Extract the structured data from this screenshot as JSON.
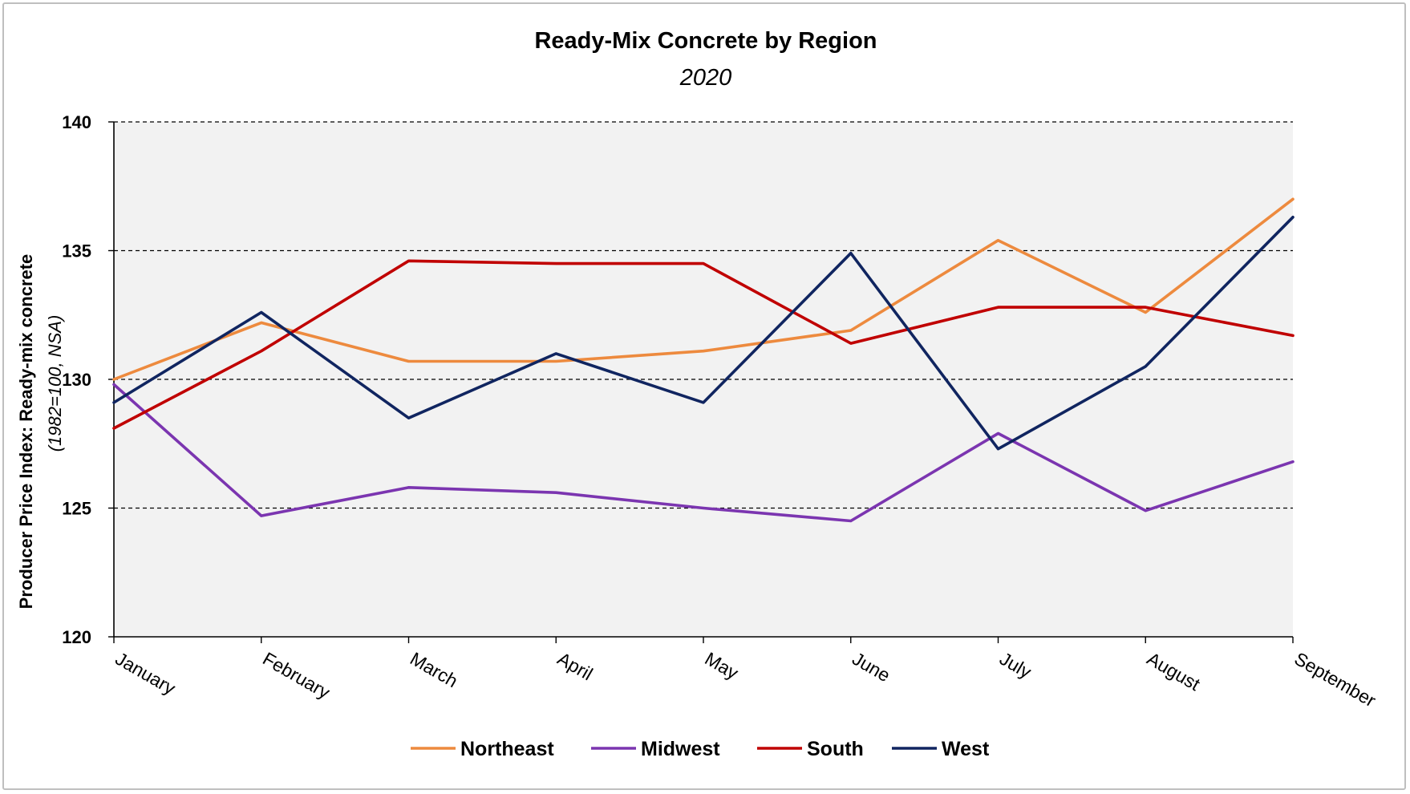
{
  "chart_data": {
    "type": "line",
    "title": "Ready-Mix Concrete by Region",
    "subtitle": "2020",
    "ylabel": "Producer Price Index: Ready-mix concrete",
    "ylabel_sub": "(1982=100, NSA)",
    "xlabel": "",
    "categories": [
      "January",
      "February",
      "March",
      "April",
      "May",
      "June",
      "July",
      "August",
      "September"
    ],
    "ylim": [
      120,
      140
    ],
    "yticks": [
      120,
      125,
      130,
      135,
      140
    ],
    "grid": "horizontal dashed",
    "legend": "bottom",
    "series": [
      {
        "name": "Northeast",
        "color": "#ED8A3E",
        "values": [
          130.0,
          132.2,
          130.7,
          130.7,
          131.1,
          131.9,
          135.4,
          132.6,
          137.0
        ]
      },
      {
        "name": "Midwest",
        "color": "#7B35B0",
        "values": [
          129.8,
          124.7,
          125.8,
          125.6,
          125.0,
          124.5,
          127.9,
          124.9,
          126.8
        ]
      },
      {
        "name": "South",
        "color": "#C00000",
        "values": [
          128.1,
          131.1,
          134.6,
          134.5,
          134.5,
          131.4,
          132.8,
          132.8,
          131.7
        ]
      },
      {
        "name": "West",
        "color": "#102560",
        "values": [
          129.1,
          132.6,
          128.5,
          131.0,
          129.1,
          134.9,
          127.3,
          130.5,
          136.3
        ]
      }
    ]
  }
}
